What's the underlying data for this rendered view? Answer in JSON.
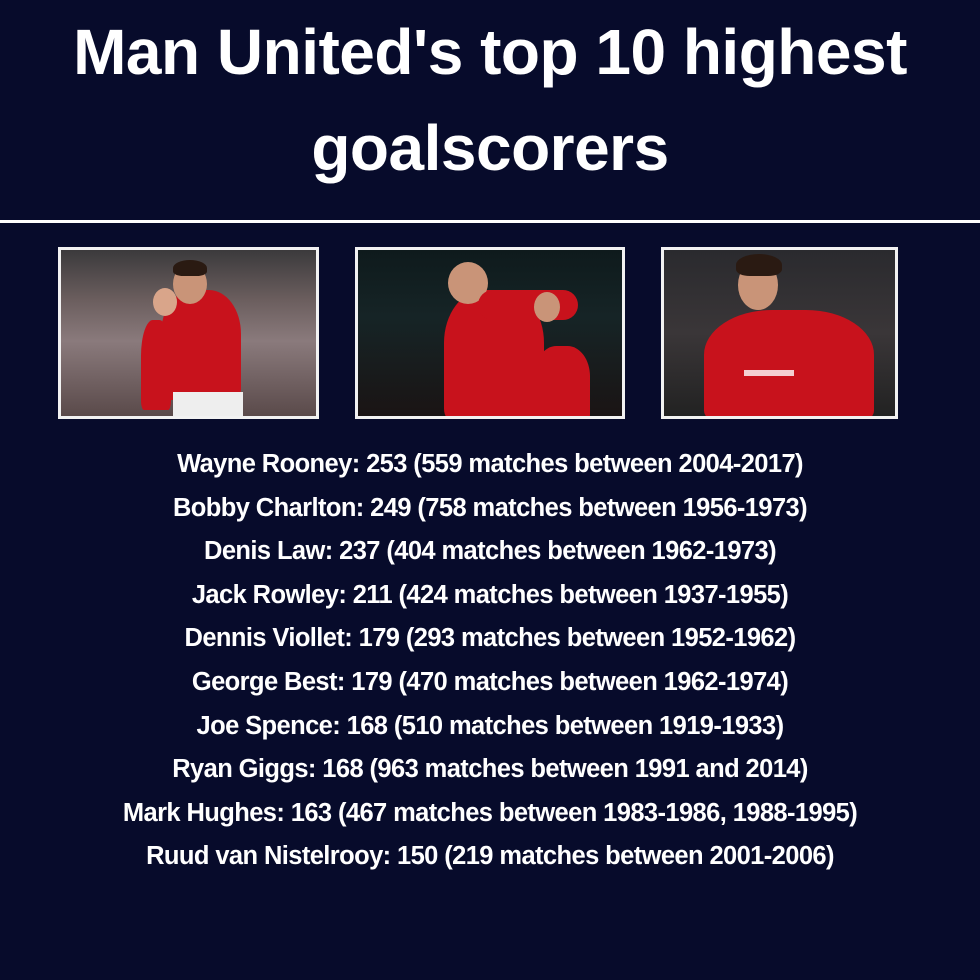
{
  "title": {
    "line1": "Man United's top 10 highest",
    "line2": "goalscorers"
  },
  "colors": {
    "background": "#070b2b",
    "text": "#ffffff",
    "shirt": "#c8121c"
  },
  "photos": [
    {
      "name": "player-photo-celebrating"
    },
    {
      "name": "player-photo-hands-on-head"
    },
    {
      "name": "player-photo-shouting"
    }
  ],
  "scorers": [
    "Wayne Rooney: 253 (559 matches between 2004-2017)",
    "Bobby Charlton: 249 (758 matches between 1956-1973)",
    "Denis Law: 237 (404 matches between 1962-1973)",
    "Jack Rowley: 211 (424 matches between 1937-1955)",
    "Dennis Viollet: 179 (293 matches between 1952-1962)",
    "George Best: 179 (470 matches between 1962-1974)",
    "Joe Spence: 168 (510 matches between 1919-1933)",
    "Ryan Giggs: 168 (963 matches between 1991 and 2014)",
    "Mark Hughes: 163 (467 matches between 1983-1986, 1988-1995)",
    "Ruud van Nistelrooy: 150 (219 matches between 2001-2006)"
  ]
}
